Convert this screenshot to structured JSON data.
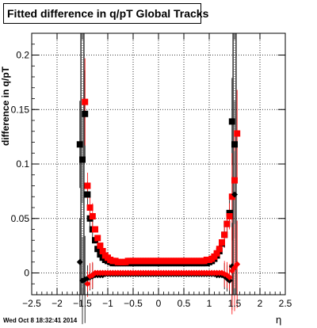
{
  "chart_data": {
    "type": "scatter",
    "title": "Fitted difference in q/pT  Global Tracks",
    "xlabel": "η",
    "ylabel": "difference in q/pT",
    "xlim": [
      -2.5,
      2.5
    ],
    "ylim": [
      -0.02,
      0.22
    ],
    "grid": true,
    "xticks": [
      -2.5,
      -2,
      -1.5,
      -1,
      -0.5,
      0,
      0.5,
      1,
      1.5,
      2,
      2.5
    ],
    "xtick_labels": [
      "−2.5",
      "−2",
      "−1.5",
      "−1",
      "−0.5",
      "0",
      "0.5",
      "1",
      "1.5",
      "2",
      "2.5"
    ],
    "yticks": [
      0,
      0.05,
      0.1,
      0.15,
      0.2
    ],
    "ytick_labels": [
      "0",
      "0.05",
      "0.1",
      "0.15",
      "0.2"
    ],
    "vertical_lines": [
      -1.53,
      -1.47,
      1.47,
      1.53
    ],
    "series": [
      {
        "marker": "square",
        "color": "#000000",
        "x": [
          -1.55,
          -1.5,
          -1.45,
          -1.4,
          -1.35,
          -1.3,
          -1.25,
          -1.2,
          -1.15,
          -1.1,
          -1.05,
          -1.0,
          -0.95,
          -0.9,
          -0.85,
          -0.8,
          -0.75,
          -0.7,
          -0.65,
          -0.6,
          -0.55,
          -0.5,
          -0.45,
          -0.4,
          -0.35,
          -0.3,
          -0.25,
          -0.2,
          -0.15,
          -0.1,
          -0.05,
          0.0,
          0.05,
          0.1,
          0.15,
          0.2,
          0.25,
          0.3,
          0.35,
          0.4,
          0.45,
          0.5,
          0.55,
          0.6,
          0.65,
          0.7,
          0.75,
          0.8,
          0.85,
          0.9,
          0.95,
          1.0,
          1.05,
          1.1,
          1.15,
          1.2,
          1.25,
          1.3,
          1.35,
          1.4,
          1.45,
          1.5
        ],
        "y": [
          0.118,
          0.104,
          0.146,
          0.072,
          0.05,
          0.04,
          0.03,
          0.022,
          0.017,
          0.014,
          0.012,
          0.011,
          0.01,
          0.009,
          0.009,
          0.009,
          0.009,
          0.009,
          0.009,
          0.009,
          0.009,
          0.009,
          0.009,
          0.009,
          0.009,
          0.009,
          0.009,
          0.009,
          0.009,
          0.009,
          0.009,
          0.009,
          0.009,
          0.009,
          0.009,
          0.009,
          0.009,
          0.009,
          0.009,
          0.009,
          0.009,
          0.009,
          0.009,
          0.009,
          0.009,
          0.009,
          0.009,
          0.009,
          0.009,
          0.009,
          0.009,
          0.01,
          0.011,
          0.013,
          0.016,
          0.02,
          0.027,
          0.035,
          0.045,
          0.055,
          0.139,
          0.118
        ]
      },
      {
        "marker": "square",
        "color": "#ff0000",
        "x": [
          -1.45,
          -1.4,
          -1.35,
          -1.3,
          -1.25,
          -1.2,
          -1.15,
          -1.1,
          -1.05,
          -1.0,
          -0.95,
          -0.9,
          -0.85,
          -0.8,
          -0.75,
          -0.7,
          -0.65,
          -0.6,
          -0.55,
          -0.5,
          -0.45,
          -0.4,
          -0.35,
          -0.3,
          -0.25,
          -0.2,
          -0.15,
          -0.1,
          -0.05,
          0.0,
          0.05,
          0.1,
          0.15,
          0.2,
          0.25,
          0.3,
          0.35,
          0.4,
          0.45,
          0.5,
          0.55,
          0.6,
          0.65,
          0.7,
          0.75,
          0.8,
          0.85,
          0.9,
          0.95,
          1.0,
          1.05,
          1.1,
          1.15,
          1.2,
          1.25,
          1.3,
          1.35,
          1.4,
          1.45,
          1.5,
          1.55
        ],
        "y": [
          0.157,
          0.08,
          0.06,
          0.052,
          0.04,
          0.032,
          0.025,
          0.02,
          0.016,
          0.014,
          0.012,
          0.011,
          0.011,
          0.01,
          0.01,
          0.01,
          0.01,
          0.011,
          0.011,
          0.011,
          0.011,
          0.011,
          0.011,
          0.011,
          0.011,
          0.011,
          0.011,
          0.011,
          0.011,
          0.011,
          0.011,
          0.011,
          0.011,
          0.011,
          0.011,
          0.011,
          0.011,
          0.011,
          0.011,
          0.011,
          0.011,
          0.011,
          0.011,
          0.011,
          0.011,
          0.011,
          0.011,
          0.011,
          0.012,
          0.012,
          0.013,
          0.015,
          0.018,
          0.022,
          0.028,
          0.035,
          0.045,
          0.052,
          0.07,
          0.085,
          0.128
        ]
      },
      {
        "marker": "diamond",
        "color": "#000000",
        "x": [
          -1.55,
          -1.5,
          -1.45,
          -1.4,
          -1.35,
          -1.3,
          -1.25,
          -1.2,
          -1.15,
          -1.1,
          -1.05,
          -1.0,
          -0.95,
          -0.9,
          -0.85,
          -0.8,
          -0.75,
          -0.7,
          -0.65,
          -0.6,
          -0.55,
          -0.5,
          -0.45,
          -0.4,
          -0.35,
          -0.3,
          -0.25,
          -0.2,
          -0.15,
          -0.1,
          -0.05,
          0.0,
          0.05,
          0.1,
          0.15,
          0.2,
          0.25,
          0.3,
          0.35,
          0.4,
          0.45,
          0.5,
          0.55,
          0.6,
          0.65,
          0.7,
          0.75,
          0.8,
          0.85,
          0.9,
          0.95,
          1.0,
          1.05,
          1.1,
          1.15,
          1.2,
          1.25,
          1.3,
          1.35,
          1.4,
          1.45,
          1.5
        ],
        "y": [
          0.01,
          -0.007,
          -0.006,
          -0.005,
          -0.004,
          -0.003,
          -0.002,
          -0.002,
          -0.002,
          -0.002,
          -0.001,
          -0.001,
          -0.001,
          -0.001,
          -0.001,
          -0.001,
          -0.001,
          -0.001,
          -0.001,
          -0.001,
          -0.001,
          -0.001,
          -0.001,
          -0.001,
          -0.001,
          -0.001,
          -0.001,
          -0.001,
          -0.001,
          -0.001,
          -0.001,
          -0.001,
          -0.001,
          -0.001,
          -0.001,
          -0.001,
          -0.001,
          -0.001,
          -0.001,
          -0.001,
          -0.001,
          -0.001,
          -0.001,
          -0.001,
          -0.001,
          -0.001,
          -0.001,
          -0.001,
          -0.001,
          -0.001,
          -0.001,
          -0.001,
          -0.001,
          -0.001,
          -0.002,
          -0.002,
          -0.002,
          -0.003,
          -0.005,
          -0.007,
          0.006,
          0.072
        ]
      },
      {
        "marker": "diamond",
        "color": "#ff0000",
        "x": [
          -1.4,
          -1.35,
          -1.3,
          -1.25,
          -1.2,
          -1.15,
          -1.1,
          -1.05,
          -1.0,
          -0.95,
          -0.9,
          -0.85,
          -0.8,
          -0.75,
          -0.7,
          -0.65,
          -0.6,
          -0.55,
          -0.5,
          -0.45,
          -0.4,
          -0.35,
          -0.3,
          -0.25,
          -0.2,
          -0.15,
          -0.1,
          -0.05,
          0.0,
          0.05,
          0.1,
          0.15,
          0.2,
          0.25,
          0.3,
          0.35,
          0.4,
          0.45,
          0.5,
          0.55,
          0.6,
          0.65,
          0.7,
          0.75,
          0.8,
          0.85,
          0.9,
          0.95,
          1.0,
          1.05,
          1.1,
          1.15,
          1.2,
          1.25,
          1.3,
          1.35,
          1.4,
          1.45,
          1.5,
          1.55
        ],
        "y": [
          -0.01,
          -0.003,
          -0.002,
          0.0,
          0.0,
          0.0,
          0.0,
          0.0,
          0.0,
          0.0,
          0.0,
          0.0,
          0.0,
          0.0,
          0.0,
          0.0,
          0.0,
          0.0,
          0.0,
          0.0,
          0.0,
          0.0,
          0.0,
          0.0,
          0.0,
          0.0,
          0.0,
          0.0,
          0.0,
          0.0,
          0.0,
          0.0,
          0.0,
          0.0,
          0.0,
          0.0,
          0.0,
          0.0,
          0.0,
          0.0,
          0.0,
          0.0,
          0.0,
          0.0,
          0.0,
          0.0,
          0.0,
          0.0,
          0.0,
          0.0,
          0.0,
          0.0,
          0.0,
          0.0,
          -0.001,
          -0.002,
          -0.004,
          0.002,
          0.005,
          0.008
        ]
      }
    ]
  },
  "footer": {
    "timestamp": "Wed Oct  8 18:32:41 2014"
  }
}
